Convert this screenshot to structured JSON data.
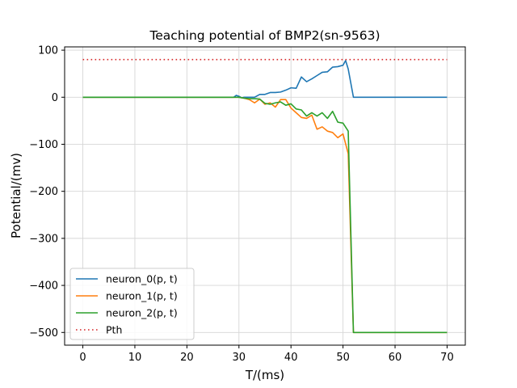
{
  "chart_data": {
    "type": "line",
    "title": "Teaching potential of BMP2(sn-9563)",
    "xlabel": "T/(ms)",
    "ylabel": "Potential/(mv)",
    "xlim": [
      -3.5,
      73.5
    ],
    "ylim": [
      -527,
      107
    ],
    "xticks": [
      0,
      10,
      20,
      30,
      40,
      50,
      60,
      70
    ],
    "xtick_labels": [
      "0",
      "10",
      "20",
      "30",
      "40",
      "50",
      "60",
      "70"
    ],
    "yticks": [
      100,
      0,
      -100,
      -200,
      -300,
      -400,
      -500
    ],
    "ytick_labels": [
      "100",
      "0",
      "−100",
      "−200",
      "−300",
      "−400",
      "−500"
    ],
    "grid": true,
    "legend_position": "lower-left",
    "series": [
      {
        "name": "neuron_0(p, t)",
        "color": "#1f77b4",
        "style": "solid",
        "x": [
          0,
          29,
          29.5,
          30,
          30.5,
          31,
          32,
          33,
          34,
          35,
          36,
          37,
          38,
          39,
          40,
          41,
          42,
          43,
          44,
          45,
          46,
          47,
          48,
          49,
          50,
          50.5,
          51,
          52,
          70
        ],
        "y": [
          0,
          0,
          4,
          2,
          -1,
          0,
          0,
          0,
          6,
          6,
          10,
          10,
          11,
          15,
          20,
          19,
          43,
          33,
          39,
          46,
          53,
          54,
          64,
          65,
          68,
          78,
          60,
          0,
          0
        ]
      },
      {
        "name": "neuron_1(p, t)",
        "color": "#ff7f0e",
        "style": "solid",
        "x": [
          0,
          30,
          31,
          32,
          33,
          34,
          35,
          36,
          37,
          38,
          39,
          40,
          41,
          42,
          43,
          44,
          45,
          46,
          47,
          48,
          49,
          50,
          51,
          52,
          70
        ],
        "y": [
          0,
          0,
          -2,
          -5,
          -12,
          -4,
          -15,
          -12,
          -21,
          -5,
          -5,
          -23,
          -33,
          -43,
          -45,
          -38,
          -68,
          -63,
          -72,
          -75,
          -86,
          -78,
          -120,
          -500,
          -500
        ]
      },
      {
        "name": "neuron_2(p, t)",
        "color": "#2ca02c",
        "style": "solid",
        "x": [
          0,
          30,
          31,
          32,
          33,
          34,
          35,
          36,
          37,
          38,
          39,
          40,
          41,
          42,
          43,
          44,
          45,
          46,
          47,
          48,
          49,
          50,
          51,
          52,
          70
        ],
        "y": [
          0,
          0,
          -2,
          -3,
          -3,
          -4,
          -13,
          -15,
          -12,
          -10,
          -17,
          -14,
          -25,
          -27,
          -40,
          -33,
          -40,
          -33,
          -45,
          -30,
          -53,
          -55,
          -72,
          -500,
          -500
        ]
      },
      {
        "name": "Pth",
        "color": "#d62728",
        "style": "dotted",
        "x": [
          0,
          70
        ],
        "y": [
          80,
          80
        ]
      }
    ]
  }
}
